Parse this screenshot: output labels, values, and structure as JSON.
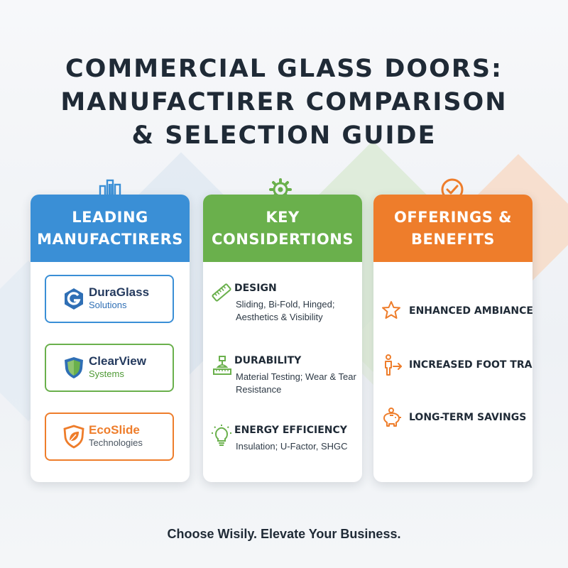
{
  "title": {
    "line1": "COMMERCIAL GLASS DOORS:",
    "line2": "MANUFACTIRER COMPARISON",
    "line3": "& SELECTION GUIDE"
  },
  "columns": {
    "manufacturers": {
      "heading_line1": "LEADING",
      "heading_line2": "MANUFACTIRERS",
      "icon": "building-icon",
      "color": "#3a8fd6",
      "items": [
        {
          "name": "DuraGlass",
          "sub": "Solutions",
          "icon": "g-logo-icon",
          "color": "#2f6fb5"
        },
        {
          "name": "ClearView",
          "sub": "Systems",
          "icon": "shield-logo-icon",
          "color": "#6ab04c"
        },
        {
          "name": "EcoSlide",
          "sub": "Technologies",
          "icon": "leaf-shield-logo-icon",
          "color": "#ee7d2b"
        }
      ]
    },
    "considerations": {
      "heading_line1": "KEY",
      "heading_line2": "CONSIDERTIONS",
      "icon": "gear-icon",
      "color": "#6ab04c",
      "items": [
        {
          "title": "DESIGN",
          "desc": "Sliding, Bi-Fold, Hinged; Aesthetics & Visibility",
          "icon": "ruler-icon"
        },
        {
          "title": "DURABILITY",
          "desc": "Material Testing; Wear & Tear Resistance",
          "icon": "testing-machine-icon"
        },
        {
          "title": "ENERGY EFFICIENCY",
          "desc": "Insulation; U-Factor, SHGC",
          "icon": "lightbulb-icon"
        }
      ]
    },
    "benefits": {
      "heading_line1": "OFFERINGS &",
      "heading_line2": "BENEFITS",
      "icon": "check-circle-icon",
      "color": "#ee7d2b",
      "items": [
        {
          "label": "ENHANCED AMBIANCE",
          "icon": "star-icon"
        },
        {
          "label": "INCREASED FOOT TRAFFIC",
          "icon": "person-arrow-icon"
        },
        {
          "label": "LONG-TERM SAVINGS",
          "icon": "piggy-bank-icon"
        }
      ]
    }
  },
  "tagline": "Choose Wisily. Elevate Your Business."
}
